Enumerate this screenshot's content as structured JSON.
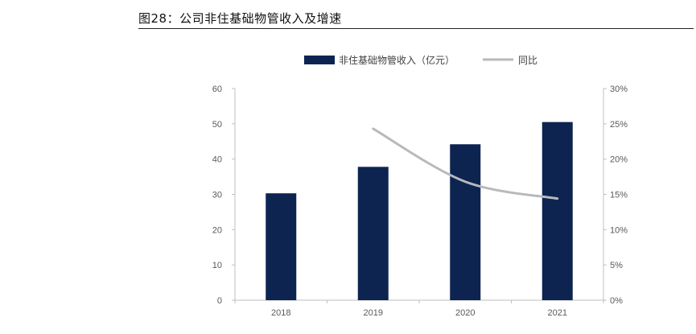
{
  "figure": {
    "title": "图28：公司非住基础物管收入及增速"
  },
  "chart_data": {
    "type": "bar",
    "categories": [
      "2018",
      "2019",
      "2020",
      "2021"
    ],
    "series": [
      {
        "name": "非住基础物管收入（亿元）",
        "type": "bar",
        "axis": "left",
        "values": [
          30.3,
          37.8,
          44.2,
          50.5
        ],
        "color": "#0d2451"
      },
      {
        "name": "同比",
        "type": "line",
        "axis": "right",
        "values": [
          null,
          0.243,
          0.168,
          0.144
        ],
        "color": "#b7b9bc"
      }
    ],
    "left_axis": {
      "min": 0,
      "max": 60,
      "ticks": [
        "0",
        "10",
        "20",
        "30",
        "40",
        "50",
        "60"
      ]
    },
    "right_axis": {
      "min": 0,
      "max": 0.3,
      "ticks": [
        "0%",
        "5%",
        "10%",
        "15%",
        "20%",
        "25%",
        "30%"
      ]
    },
    "grid": false,
    "legend_position": "top"
  }
}
